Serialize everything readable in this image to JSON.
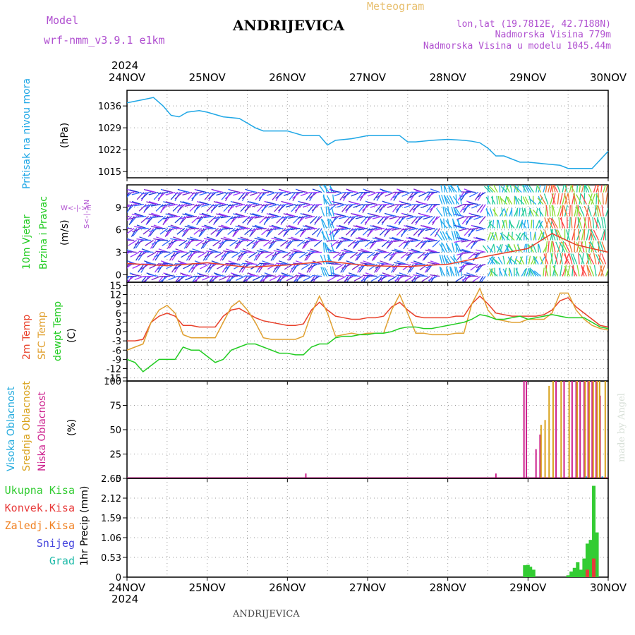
{
  "header": {
    "model_label": "Model",
    "model_name": "wrf-nmm_v3.9.1  e1km",
    "title": "ANDRIJEVICA",
    "meteogram_label": "Meteogram",
    "lonlat": "lon,lat (19.7812E, 42.7188N)",
    "altitude": "Nadmorska Visina 779m",
    "model_altitude": "Nadmorska Visina u modelu 1045.44m",
    "year_top": "2024",
    "year_bottom": "2024",
    "footer": "ANDRIJEVICA",
    "credit": "made by Angel"
  },
  "colors": {
    "pressure": "#1fa7e6",
    "temp2m": "#e8402a",
    "sfc": "#e0a030",
    "dewpt": "#22cc22",
    "high_cloud": "#22aadd",
    "mid_cloud": "#d9a21b",
    "low_cloud": "#cc1e8c",
    "total_precip": "#33cc33",
    "conv_precip": "#e83a3a",
    "frozen": "#f08020",
    "snow": "#4444dd",
    "hail": "#22bbaa",
    "header_purple": "#b050d0",
    "meteogram_orange": "#e8c070"
  },
  "panel_labels": {
    "pressure": {
      "name": "Pritisak na nivou mora",
      "unit": "(hPa)"
    },
    "wind": {
      "name1": "10m Vjetar",
      "name2": "Brzina i Pravac",
      "unit": "(m/s)",
      "compass_ns": "S<-|->N",
      "compass_we": "W<-|->E"
    },
    "temp": {
      "name1": "2m Temp",
      "name2": "SFC Temp",
      "name3": "dewpt Temp",
      "unit": "(C)"
    },
    "cloud": {
      "name1": "Visoka Oblacnost",
      "name2": "Srednja Oblacnost",
      "name3": "Niska Oblacnost",
      "unit": "(%)"
    },
    "precip": {
      "unit": "1hr Precip (mm)",
      "legend": [
        "Ukupna Kisa",
        "Konvek.Kisa",
        "Zaledj.Kisa",
        "Snijeg",
        "Grad"
      ]
    }
  },
  "chart_data": [
    {
      "type": "line",
      "name": "pressure",
      "x_ticks": [
        "24NOV",
        "25NOV",
        "26NOV",
        "27NOV",
        "28NOV",
        "29NOV",
        "30NOV"
      ],
      "yticks": [
        1015,
        1022,
        1029,
        1036
      ],
      "ylim": [
        1013,
        1041
      ],
      "series": [
        {
          "color": "#1fa7e6",
          "x": [
            0,
            0.2,
            0.33,
            0.45,
            0.55,
            0.65,
            0.75,
            0.9,
            1.0,
            1.2,
            1.4,
            1.6,
            1.7,
            1.85,
            2.0,
            2.2,
            2.4,
            2.5,
            2.6,
            2.8,
            3.0,
            3.2,
            3.4,
            3.5,
            3.6,
            3.8,
            4.0,
            4.2,
            4.3,
            4.4,
            4.5,
            4.6,
            4.7,
            4.9,
            5.0,
            5.2,
            5.4,
            5.5,
            5.6,
            5.8,
            6.0
          ],
          "y": [
            1037,
            1038,
            1038.7,
            1036,
            1033,
            1032.5,
            1034,
            1034.5,
            1034,
            1032.5,
            1032,
            1029,
            1028,
            1028,
            1028,
            1026.5,
            1026.5,
            1023.5,
            1025,
            1025.5,
            1026.5,
            1026.5,
            1026.5,
            1024.5,
            1024.5,
            1025,
            1025.3,
            1025,
            1024.7,
            1024.2,
            1022.5,
            1020,
            1020,
            1018,
            1018,
            1017.5,
            1017,
            1016,
            1016,
            1016,
            1021.5
          ]
        }
      ]
    },
    {
      "type": "scatter",
      "name": "wind",
      "x_ticks": [
        "24NOV",
        "25NOV",
        "26NOV",
        "27NOV",
        "28NOV",
        "29NOV",
        "30NOV"
      ],
      "yticks": [
        0,
        3,
        6,
        9
      ],
      "ylim": [
        -1,
        12
      ],
      "series": [
        {
          "color": "#e8402a",
          "x": [
            0,
            0.5,
            1.0,
            1.5,
            2.0,
            2.5,
            3.0,
            3.5,
            4.0,
            4.5,
            5.0,
            5.3,
            5.6,
            6.0
          ],
          "y": [
            1.5,
            1.2,
            1.6,
            1.0,
            1.3,
            1.8,
            1.2,
            1.1,
            1.4,
            2.5,
            3.5,
            5.5,
            4.0,
            3.0
          ]
        }
      ]
    },
    {
      "type": "line",
      "name": "temperature",
      "x_ticks": [
        "24NOV",
        "25NOV",
        "26NOV",
        "27NOV",
        "28NOV",
        "29NOV",
        "30NOV"
      ],
      "yticks": [
        -15,
        -12,
        -9,
        -6,
        -3,
        0,
        3,
        6,
        9,
        12,
        15
      ],
      "ylim": [
        -16,
        16
      ],
      "series": [
        {
          "name": "2m Temp",
          "color": "#e8402a",
          "x": [
            0,
            0.1,
            0.2,
            0.3,
            0.4,
            0.5,
            0.6,
            0.7,
            0.8,
            0.9,
            1.0,
            1.1,
            1.2,
            1.3,
            1.4,
            1.5,
            1.6,
            1.7,
            1.8,
            1.9,
            2.0,
            2.1,
            2.2,
            2.3,
            2.4,
            2.5,
            2.6,
            2.7,
            2.8,
            2.9,
            3.0,
            3.1,
            3.2,
            3.3,
            3.4,
            3.5,
            3.6,
            3.7,
            3.8,
            3.9,
            4.0,
            4.1,
            4.2,
            4.3,
            4.4,
            4.5,
            4.6,
            4.7,
            4.8,
            4.9,
            5.0,
            5.1,
            5.2,
            5.3,
            5.4,
            5.5,
            5.6,
            5.7,
            5.8,
            5.9,
            6.0
          ],
          "y": [
            -3,
            -3,
            -2.5,
            3,
            5,
            6,
            5,
            2,
            2,
            1.5,
            1.5,
            1.5,
            5,
            7,
            7.5,
            6,
            4.5,
            3.5,
            3,
            2.5,
            2,
            2,
            2.5,
            7,
            9.5,
            7,
            5,
            4.5,
            4,
            4,
            4.5,
            4.5,
            5,
            8,
            9.5,
            7,
            5,
            4.5,
            4.5,
            4.5,
            4.5,
            5,
            5,
            9,
            11.5,
            9,
            6,
            5.5,
            5,
            5,
            5,
            5,
            5.5,
            7,
            10,
            11,
            8,
            6,
            4,
            2,
            1.5
          ]
        },
        {
          "name": "SFC Temp",
          "color": "#e0a030",
          "x": [
            0,
            0.1,
            0.2,
            0.3,
            0.4,
            0.5,
            0.6,
            0.7,
            0.8,
            0.9,
            1.0,
            1.1,
            1.2,
            1.3,
            1.4,
            1.5,
            1.6,
            1.7,
            1.8,
            1.9,
            2.0,
            2.1,
            2.2,
            2.3,
            2.4,
            2.5,
            2.6,
            2.7,
            2.8,
            2.9,
            3.0,
            3.1,
            3.2,
            3.3,
            3.4,
            3.5,
            3.6,
            3.7,
            3.8,
            3.9,
            4.0,
            4.1,
            4.2,
            4.3,
            4.4,
            4.5,
            4.6,
            4.7,
            4.8,
            4.9,
            5.0,
            5.1,
            5.2,
            5.3,
            5.4,
            5.5,
            5.6,
            5.7,
            5.8,
            5.9,
            6.0
          ],
          "y": [
            -6,
            -5,
            -4,
            3,
            7,
            8.5,
            6,
            -1,
            -2,
            -2,
            -2,
            -2,
            3,
            8,
            10,
            7,
            3,
            -2,
            -2.5,
            -2.5,
            -2.5,
            -2.5,
            -1.5,
            6,
            11.5,
            6,
            -1.5,
            -1,
            -0.5,
            -1,
            -0.5,
            -0.5,
            -0.5,
            7,
            12,
            6,
            -0.5,
            -0.5,
            -1,
            -1,
            -1,
            -0.5,
            -0.5,
            9,
            14,
            7,
            4,
            3.5,
            3,
            3,
            4,
            4,
            4,
            6,
            12.5,
            12.5,
            7,
            4,
            2,
            1,
            0.5
          ]
        },
        {
          "name": "dewpt Temp",
          "color": "#22cc22",
          "x": [
            0,
            0.1,
            0.2,
            0.3,
            0.4,
            0.5,
            0.6,
            0.7,
            0.8,
            0.9,
            1.0,
            1.1,
            1.2,
            1.3,
            1.4,
            1.5,
            1.6,
            1.7,
            1.8,
            1.9,
            2.0,
            2.1,
            2.2,
            2.3,
            2.4,
            2.5,
            2.6,
            2.7,
            2.8,
            2.9,
            3.0,
            3.1,
            3.2,
            3.3,
            3.4,
            3.5,
            3.6,
            3.7,
            3.8,
            3.9,
            4.0,
            4.1,
            4.2,
            4.3,
            4.4,
            4.5,
            4.6,
            4.7,
            4.8,
            4.9,
            5.0,
            5.1,
            5.2,
            5.3,
            5.4,
            5.5,
            5.6,
            5.7,
            5.8,
            5.9,
            6.0
          ],
          "y": [
            -9,
            -10,
            -13,
            -11,
            -9,
            -9,
            -9,
            -5,
            -6,
            -6,
            -8,
            -10,
            -9,
            -6,
            -5,
            -4,
            -4,
            -5,
            -6,
            -7,
            -7,
            -7.5,
            -7.5,
            -5,
            -4,
            -4,
            -2,
            -1.5,
            -1.5,
            -1,
            -1,
            -0.5,
            -0.5,
            0,
            1,
            1.5,
            1.5,
            1,
            1,
            1.5,
            2,
            2.5,
            3,
            4,
            5.5,
            5,
            4,
            4,
            4.5,
            5,
            4,
            4.5,
            5,
            5.5,
            5,
            4.5,
            4.5,
            4.5,
            3,
            1.5,
            1
          ]
        }
      ]
    },
    {
      "type": "bar",
      "name": "cloud_cover",
      "x_ticks": [
        "24NOV",
        "25NOV",
        "26NOV",
        "27NOV",
        "28NOV",
        "29NOV",
        "30NOV"
      ],
      "yticks": [
        0,
        25,
        50,
        75,
        100
      ],
      "ylim": [
        0,
        100
      ],
      "series": [
        {
          "name": "Niska Oblacnost",
          "color": "#cc1e8c",
          "x": [
            2.23,
            4.6,
            4.95,
            4.98,
            5.1,
            5.15,
            5.35,
            5.45,
            5.55,
            5.6,
            5.65,
            5.7,
            5.75,
            5.8,
            5.85,
            5.9
          ],
          "values": [
            5,
            5,
            100,
            100,
            30,
            45,
            100,
            100,
            100,
            100,
            100,
            100,
            100,
            100,
            100,
            85
          ]
        },
        {
          "name": "Srednja Oblacnost",
          "color": "#d9a21b",
          "x": [
            5.15,
            5.2,
            5.25,
            5.3,
            5.4,
            5.5,
            5.6,
            5.7,
            5.75,
            5.8,
            5.85,
            5.88,
            5.95
          ],
          "values": [
            55,
            60,
            95,
            100,
            100,
            100,
            100,
            100,
            100,
            100,
            100,
            100,
            100
          ]
        },
        {
          "name": "Visoka Oblacnost",
          "color": "#22aadd",
          "x": [
            5.7,
            5.9
          ],
          "values": [
            2,
            2
          ]
        }
      ]
    },
    {
      "type": "bar",
      "name": "precipitation",
      "x_ticks": [
        "24NOV",
        "25NOV",
        "26NOV",
        "27NOV",
        "28NOV",
        "29NOV",
        "30NOV"
      ],
      "yticks": [
        0,
        0.53,
        1.06,
        1.59,
        2.12,
        2.65
      ],
      "ylim": [
        0,
        2.65
      ],
      "series": [
        {
          "name": "Ukupna Kisa",
          "color": "#33cc33",
          "x": [
            4.96,
            5.0,
            5.03,
            5.07,
            5.5,
            5.54,
            5.58,
            5.62,
            5.66,
            5.7,
            5.74,
            5.78,
            5.82,
            5.86
          ],
          "values": [
            0.32,
            0.33,
            0.28,
            0.2,
            0.05,
            0.15,
            0.25,
            0.4,
            0.2,
            0.5,
            0.9,
            1.0,
            2.45,
            1.2
          ]
        },
        {
          "name": "Konvek.Kisa",
          "color": "#e83a3a",
          "x": [
            5.74,
            5.82
          ],
          "values": [
            0.2,
            0.5
          ]
        }
      ]
    }
  ]
}
